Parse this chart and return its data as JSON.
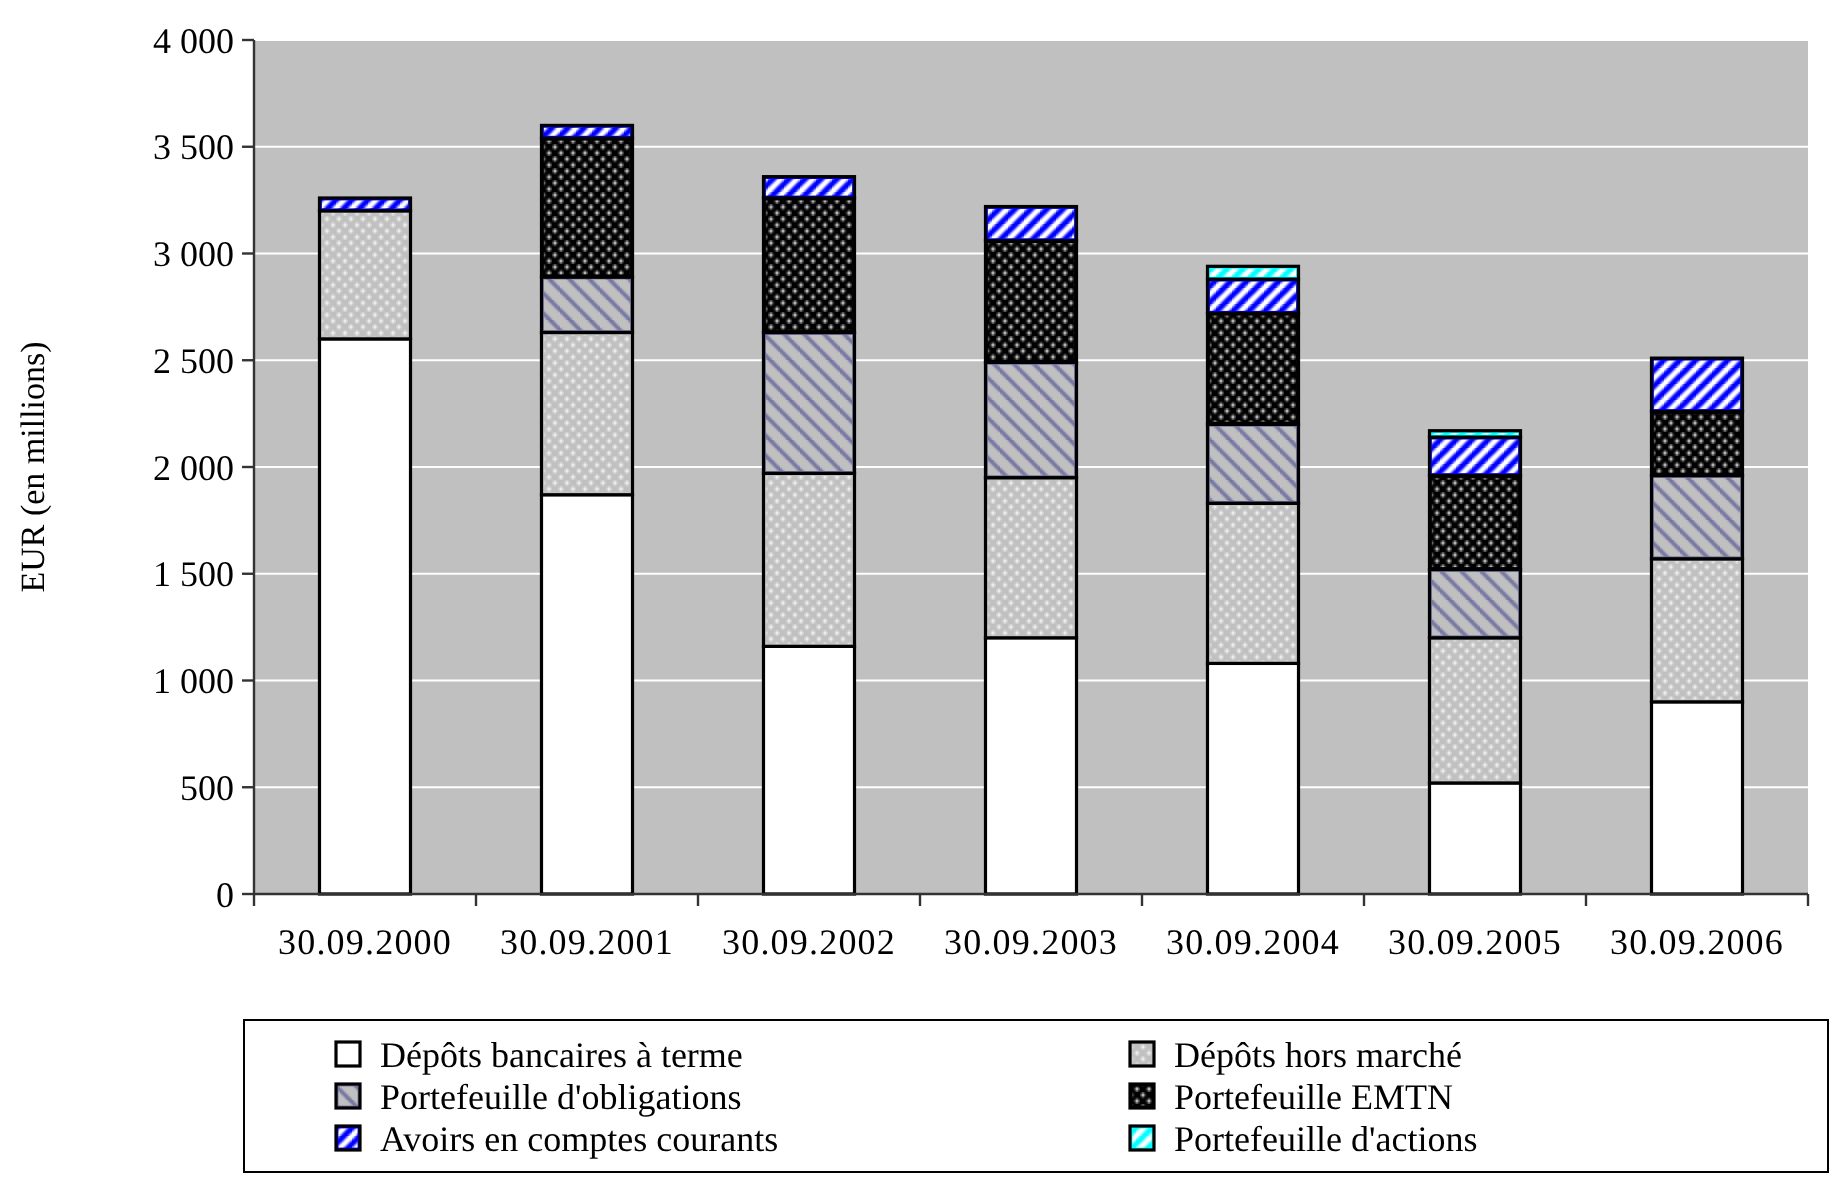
{
  "chart_data": {
    "type": "bar",
    "ylabel": "EUR (en millions)",
    "categories": [
      "30.09.2000",
      "30.09.2001",
      "30.09.2002",
      "30.09.2003",
      "30.09.2004",
      "30.09.2005",
      "30.09.2006"
    ],
    "stacked": true,
    "series": [
      {
        "name": "Dépôts bancaires à terme",
        "color": "#ffffff",
        "values": [
          2600,
          1870,
          1160,
          1200,
          1080,
          520,
          900
        ]
      },
      {
        "name": "Dépôts hors marché",
        "color": "#c0c0c0",
        "values": [
          600,
          760,
          810,
          750,
          750,
          680,
          670
        ]
      },
      {
        "name": "Portefeuille d'obligations",
        "color": "#7070a0",
        "values": [
          0,
          260,
          660,
          540,
          370,
          320,
          390
        ]
      },
      {
        "name": "Portefeuille EMTN",
        "color": "#000000",
        "values": [
          0,
          650,
          630,
          570,
          520,
          440,
          300
        ]
      },
      {
        "name": "Avoirs en comptes courants",
        "color": "#0000ff",
        "values": [
          60,
          60,
          100,
          160,
          160,
          180,
          250
        ]
      },
      {
        "name": "Portefeuille d'actions",
        "color": "#00ffff",
        "values": [
          0,
          0,
          0,
          0,
          60,
          30,
          0
        ]
      }
    ],
    "ylim": [
      0,
      4000
    ],
    "yticks": [
      0,
      500,
      {
        "value": 1000,
        "label": "1 000"
      },
      {
        "value": 1500,
        "label": "1 500"
      },
      {
        "value": 2000,
        "label": "2 000"
      },
      {
        "value": 2500,
        "label": "2 500"
      },
      {
        "value": 3000,
        "label": "3 000"
      },
      {
        "value": 3500,
        "label": "3 500"
      },
      {
        "value": 4000,
        "label": "4 000"
      }
    ],
    "grid": "y",
    "legend": "bottom"
  }
}
